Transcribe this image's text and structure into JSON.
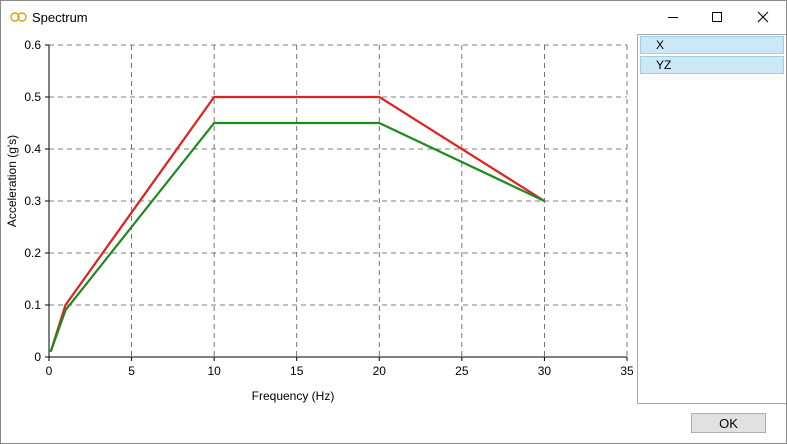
{
  "window": {
    "title": "Spectrum"
  },
  "sidebar": {
    "items": [
      {
        "label": "X"
      },
      {
        "label": "YZ"
      }
    ]
  },
  "buttons": {
    "ok_label": "OK"
  },
  "chart_data": {
    "type": "line",
    "title": "",
    "xlabel": "Frequency (Hz)",
    "ylabel": "Acceleration (g's)",
    "xlim": [
      0,
      35
    ],
    "ylim": [
      0,
      0.6
    ],
    "xticks": [
      "0",
      "5",
      "10",
      "15",
      "20",
      "25",
      "30",
      "35"
    ],
    "yticks": [
      "0",
      "0.1",
      "0.2",
      "0.3",
      "0.4",
      "0.5",
      "0.6"
    ],
    "grid": true,
    "series": [
      {
        "color": "#e02020",
        "x": [
          0.1,
          1,
          10,
          20,
          30
        ],
        "y": [
          0.01,
          0.1,
          0.5,
          0.5,
          0.3
        ]
      },
      {
        "color": "#1e8a1e",
        "x": [
          0.1,
          1,
          10,
          20,
          30
        ],
        "y": [
          0.01,
          0.09,
          0.45,
          0.45,
          0.3
        ]
      }
    ]
  }
}
